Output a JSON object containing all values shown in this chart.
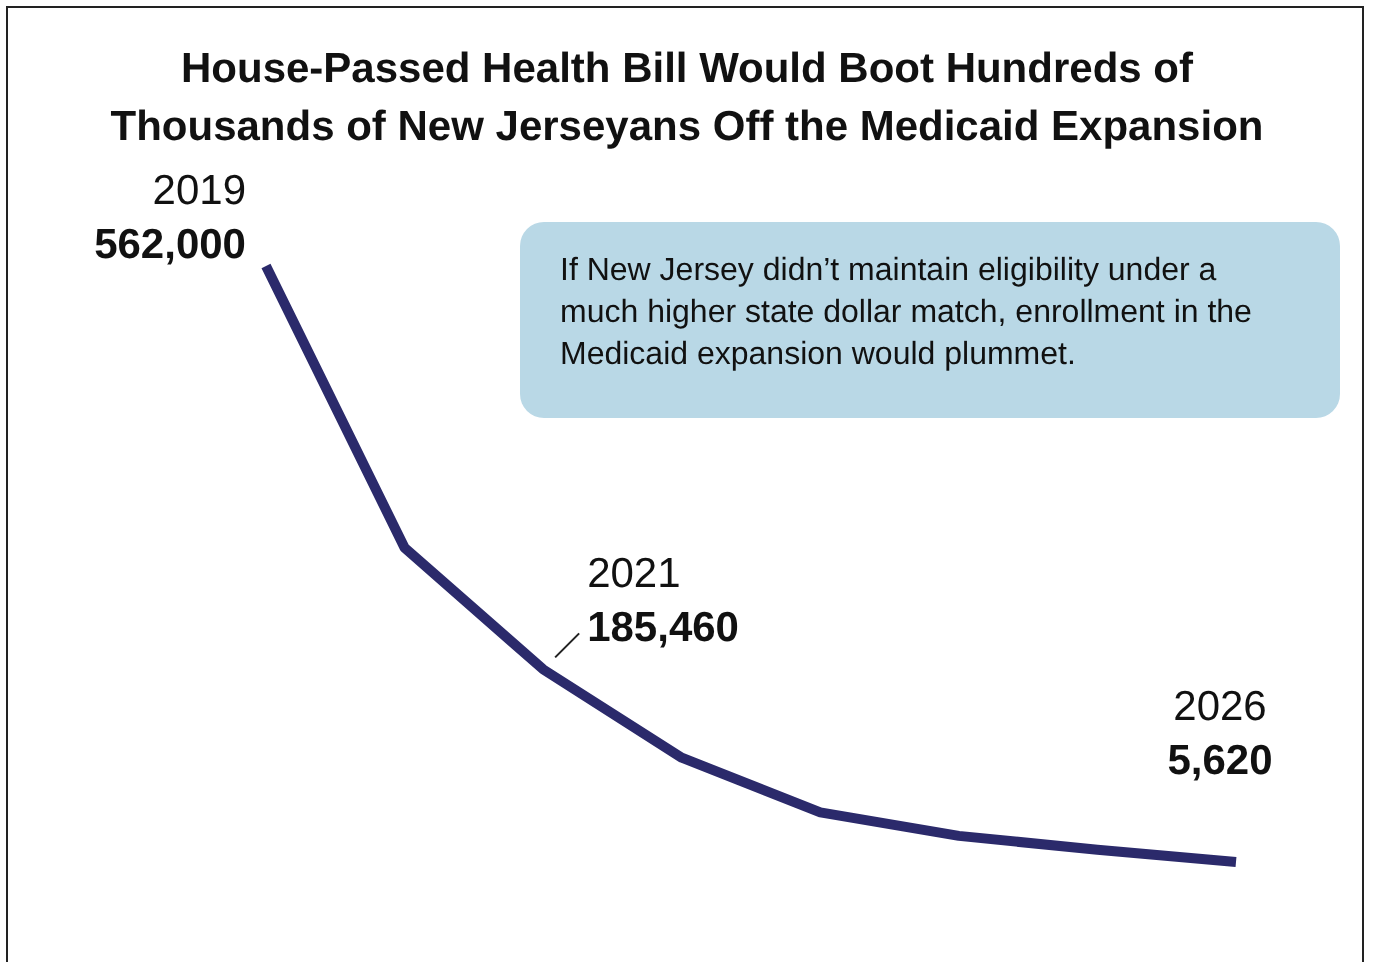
{
  "chart_data": {
    "type": "line",
    "title": "House-Passed Health Bill Would Boot Hundreds of Thousands of New Jerseyans Off the Medicaid Expansion",
    "categories": [
      null,
      null,
      null,
      null,
      null,
      null,
      null,
      null
    ],
    "series": [
      {
        "color": "#2b2a6b",
        "values": [
          562000,
          299000,
          185460,
          103000,
          52000,
          30000,
          17000,
          5620
        ],
        "value_labels": [
          "562,000",
          null,
          "185,460",
          null,
          null,
          null,
          null,
          "5,620"
        ]
      }
    ],
    "tick_labels": false,
    "grid": false,
    "legend": false,
    "marker": "none",
    "line_style": "solid",
    "annotations": [
      "If New Jersey didn’t maintain eligibility under a much higher state dollar match, enrollment in the Medicaid expansion would plummet.",
      "2019",
      "2021",
      "2026"
    ]
  }
}
